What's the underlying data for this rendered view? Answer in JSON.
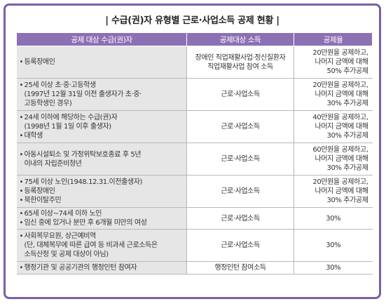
{
  "title": "| 수급(권)자 유형별 근로·사업소득 공제 현황 |",
  "headers": [
    "공제 대상 수급(권)자",
    "공제대상 소득",
    "공제율"
  ],
  "rows": [
    {
      "target": [
        {
          "b": true,
          "t": "등록장애인"
        }
      ],
      "income": [
        "장애인 직업재활사업·정신질환자",
        "직업재활사업 참여 소득"
      ],
      "rate": [
        "20만원을 공제하고,",
        "나머지 금액에 대해",
        "50% 추가공제"
      ]
    },
    {
      "target": [
        {
          "b": true,
          "t": "25세 이상 초·중·고등학생"
        },
        {
          "b": false,
          "t": "(1997년 12월 31일 이전 출생자가 초·중·"
        },
        {
          "b": false,
          "t": "고등학생인 경우)"
        }
      ],
      "income": [
        "근로·사업소득"
      ],
      "rate": [
        "20만원을 공제하고,",
        "나머지 금액에 대해",
        "30% 추가공제"
      ]
    },
    {
      "target": [
        {
          "b": true,
          "t": "24세 이하에 해당하는 수급(권)자"
        },
        {
          "b": false,
          "t": "(1998년 1월 1일 이후 출생자)"
        },
        {
          "b": true,
          "t": "대학생"
        }
      ],
      "income": [
        "근로·사업소득"
      ],
      "rate": [
        "40만원을 공제하고,",
        "나머지 금액에 대해",
        "30% 추가공제"
      ]
    },
    {
      "target": [
        {
          "b": true,
          "t": "아동시설퇴소 및 가정위탁보호종료 후 5년"
        },
        {
          "b": false,
          "t": "이내의 자립준비청년"
        }
      ],
      "income": [
        "근로·사업소득"
      ],
      "rate": [
        "60만원을 공제하고,",
        "나머지 금액에 대해",
        "30% 추가공제"
      ]
    },
    {
      "target": [
        {
          "b": true,
          "t": "75세 이상 노인(1948.12.31.이전출생자)"
        },
        {
          "b": true,
          "t": "등록장애인"
        },
        {
          "b": true,
          "t": "북한이탈주민"
        }
      ],
      "income": [
        "근로·사업소득"
      ],
      "rate": [
        "20만원을 공제하고,",
        "나머지 금액에 대해",
        "30% 추가공제"
      ]
    },
    {
      "target": [
        {
          "b": true,
          "t": "65세 이상~74세 이하 노인"
        },
        {
          "b": true,
          "t": "임신 중에 있거나 분만 후 6개월 미만의 여성"
        }
      ],
      "income": [
        "근로·사업소득"
      ],
      "rate": [
        "30%"
      ]
    },
    {
      "target": [
        {
          "b": true,
          "t": "사회복무요원, 상근예비역"
        },
        {
          "b": false,
          "t": "(단, 대체복무에 따른 급여 등 비과세 근로소득은"
        },
        {
          "b": false,
          "t": "소득산정 및 공제 대상이 아님)"
        }
      ],
      "income": [
        "근로·사업소득"
      ],
      "rate": [
        "30%"
      ]
    },
    {
      "target": [
        {
          "b": true,
          "t": "행정기관 및 공공기관의 행정인턴 참여자"
        }
      ],
      "income": [
        "행정인턴 참여소득"
      ],
      "rate": [
        "30%"
      ]
    }
  ]
}
